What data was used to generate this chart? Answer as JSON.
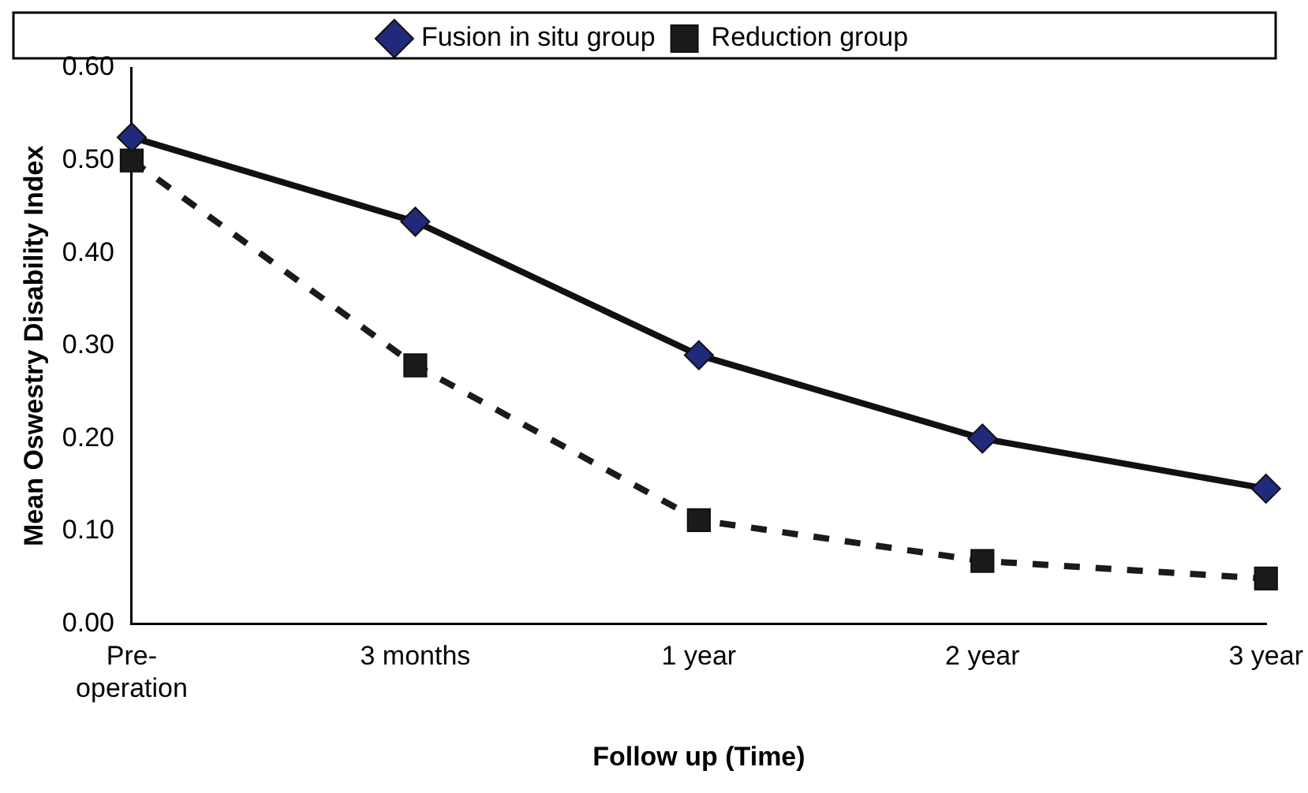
{
  "chart_data": {
    "type": "line",
    "xlabel": "Follow up (Time)",
    "ylabel": "Mean Oswestry Disability Index",
    "categories": [
      "Pre-\noperation",
      "3 months",
      "1 year",
      "2 year",
      "3 year"
    ],
    "series": [
      {
        "name": "Fusion in situ group",
        "color": "#1f2a7a",
        "marker": "diamond",
        "line_style": "solid",
        "values": [
          0.525,
          0.434,
          0.29,
          0.2,
          0.146
        ]
      },
      {
        "name": "Reduction group",
        "color": "#1a1a1a",
        "marker": "square",
        "line_style": "dashed",
        "values": [
          0.5,
          0.279,
          0.112,
          0.068,
          0.049
        ]
      }
    ],
    "ylim": [
      0,
      0.6
    ],
    "yticks": [
      {
        "value": 0,
        "label": "0.00"
      },
      {
        "value": 0.1,
        "label": "0.10"
      },
      {
        "value": 0.2,
        "label": "0.20"
      },
      {
        "value": 0.3,
        "label": "0.30"
      },
      {
        "value": 0.4,
        "label": "0.40"
      },
      {
        "value": 0.5,
        "label": "0.50"
      },
      {
        "value": 0.6,
        "label": "0.60"
      }
    ],
    "grid": false,
    "legend": "top"
  }
}
